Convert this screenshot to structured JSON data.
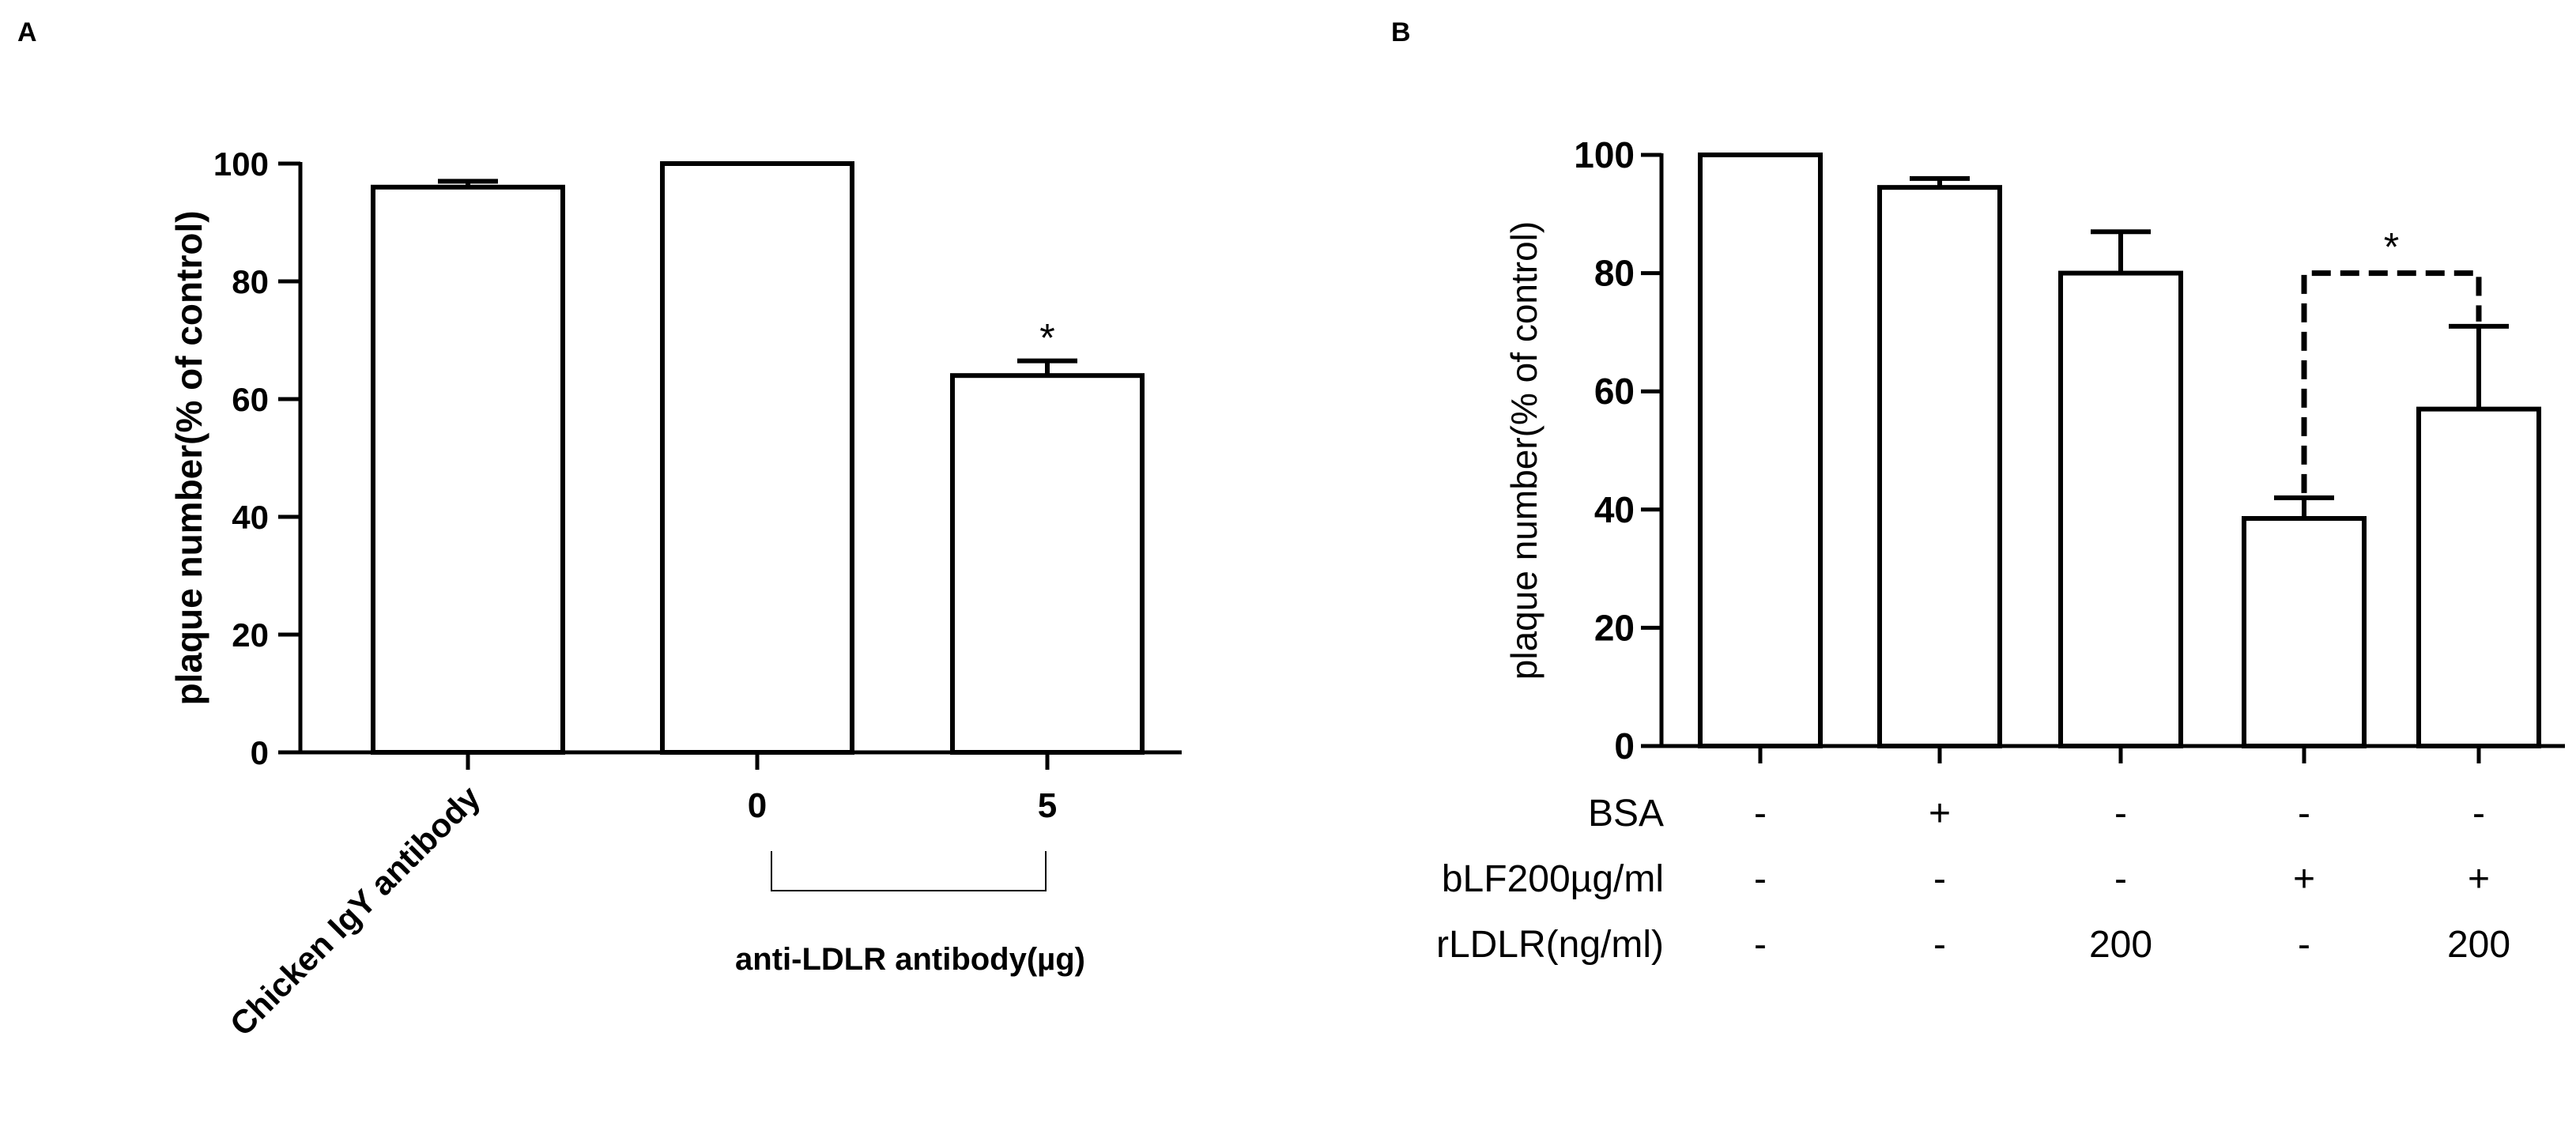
{
  "chart_data": [
    {
      "panel": "A",
      "type": "bar",
      "ylabel": "plaque number(% of control)",
      "ylim": [
        0,
        100
      ],
      "yticks": [
        0,
        20,
        40,
        60,
        80,
        100
      ],
      "categories": [
        "Chicken IgY antibody",
        "0",
        "5"
      ],
      "values": [
        96,
        100,
        64
      ],
      "errors": [
        1,
        0,
        2.5
      ],
      "significance": [
        "",
        "",
        "*"
      ],
      "group_label": "anti-LDLR antibody(µg)"
    },
    {
      "panel": "B",
      "type": "bar",
      "ylabel": "plaque number(% of control)",
      "ylim": [
        0,
        100
      ],
      "yticks": [
        0,
        20,
        40,
        60,
        80,
        100
      ],
      "values": [
        100,
        94.5,
        80,
        38.5,
        57
      ],
      "errors": [
        0,
        1.5,
        7,
        3.5,
        14
      ],
      "condition_rows": [
        {
          "label": "BSA",
          "cells": [
            "-",
            "+",
            "-",
            "-",
            "-"
          ]
        },
        {
          "label": "bLF200µg/ml",
          "cells": [
            "-",
            "-",
            "-",
            "+",
            "+"
          ]
        },
        {
          "label": "rLDLR(ng/ml)",
          "cells": [
            "-",
            "-",
            "200",
            "-",
            "200"
          ]
        }
      ],
      "comparison": {
        "from_bar": 3,
        "to_bar": 4,
        "label": "*",
        "y": 80
      }
    }
  ]
}
